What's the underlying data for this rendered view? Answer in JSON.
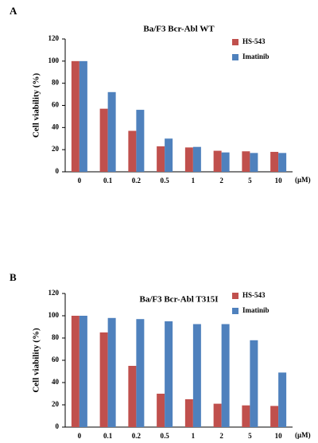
{
  "chart_data": [
    {
      "type": "bar",
      "panel_label": "A",
      "title": "Ba/F3 Bcr-Abl WT",
      "y_label": "Cell viability  (%)",
      "x_unit": "(μM)",
      "categories": [
        "0",
        "0.1",
        "0.2",
        "0.5",
        "1",
        "2",
        "5",
        "10"
      ],
      "series": [
        {
          "name": "HS-543",
          "color": "#c0504d",
          "values": [
            100,
            57,
            37,
            23,
            22,
            19,
            18.5,
            18
          ]
        },
        {
          "name": "Imatinib",
          "color": "#4f81bd",
          "values": [
            100,
            72,
            56,
            30,
            22.5,
            17.5,
            17,
            17
          ]
        }
      ],
      "ylim": [
        0,
        120
      ],
      "yticks": [
        0,
        20,
        40,
        60,
        80,
        100,
        120
      ]
    },
    {
      "type": "bar",
      "panel_label": "B",
      "title": "Ba/F3 Bcr-Abl T315I",
      "y_label": "Cell viability  (%)",
      "x_unit": "(μM)",
      "categories": [
        "0",
        "0.1",
        "0.2",
        "0.5",
        "1",
        "2",
        "5",
        "10"
      ],
      "series": [
        {
          "name": "HS-543",
          "color": "#c0504d",
          "values": [
            100,
            85,
            55,
            30,
            25,
            21,
            19.5,
            19
          ]
        },
        {
          "name": "Imatinib",
          "color": "#4f81bd",
          "values": [
            100,
            98,
            97,
            95,
            92.5,
            92.5,
            78,
            49
          ]
        }
      ],
      "ylim": [
        0,
        120
      ],
      "yticks": [
        0,
        20,
        40,
        60,
        80,
        100,
        120
      ]
    }
  ]
}
